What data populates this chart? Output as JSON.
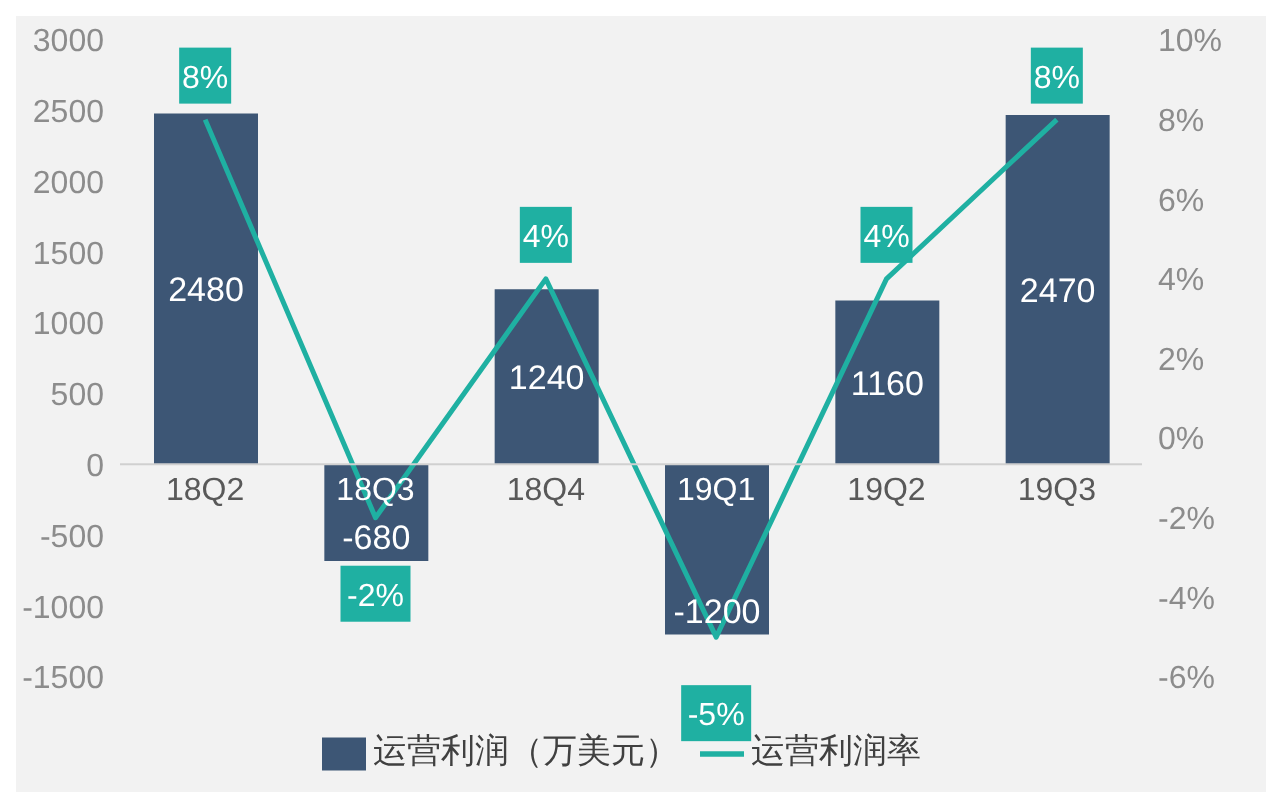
{
  "chart_data": {
    "type": "bar",
    "categories": [
      "18Q2",
      "18Q3",
      "18Q4",
      "19Q1",
      "19Q2",
      "19Q3"
    ],
    "series": [
      {
        "name": "运营利润（万美元）",
        "type": "bar",
        "color": "#3d5675",
        "values": [
          2480,
          -680,
          1240,
          -1200,
          1160,
          2470
        ],
        "data_labels": true
      },
      {
        "name": "运营利润率",
        "type": "line",
        "axis": "y2",
        "color": "#1fb0a2",
        "values": [
          8,
          -2,
          4,
          -5,
          4,
          8
        ],
        "value_labels": [
          "8%",
          "-2%",
          "4%",
          "-5%",
          "4%",
          "8%"
        ],
        "marker": "none"
      }
    ],
    "ylim": [
      -1500,
      3000
    ],
    "yticks": [
      -1500,
      -1000,
      -500,
      0,
      500,
      1000,
      1500,
      2000,
      2500,
      3000
    ],
    "y2lim": [
      -6,
      10
    ],
    "y2ticks": [
      {
        "value": -6,
        "label": "-6%"
      },
      {
        "value": -4,
        "label": "-4%"
      },
      {
        "value": -2,
        "label": "-2%"
      },
      {
        "value": 0,
        "label": "0%"
      },
      {
        "value": 2,
        "label": "2%"
      },
      {
        "value": 4,
        "label": "4%"
      },
      {
        "value": 6,
        "label": "6%"
      },
      {
        "value": 8,
        "label": "8%"
      },
      {
        "value": 10,
        "label": "10%"
      }
    ],
    "grid": false,
    "legend": "bottom"
  }
}
